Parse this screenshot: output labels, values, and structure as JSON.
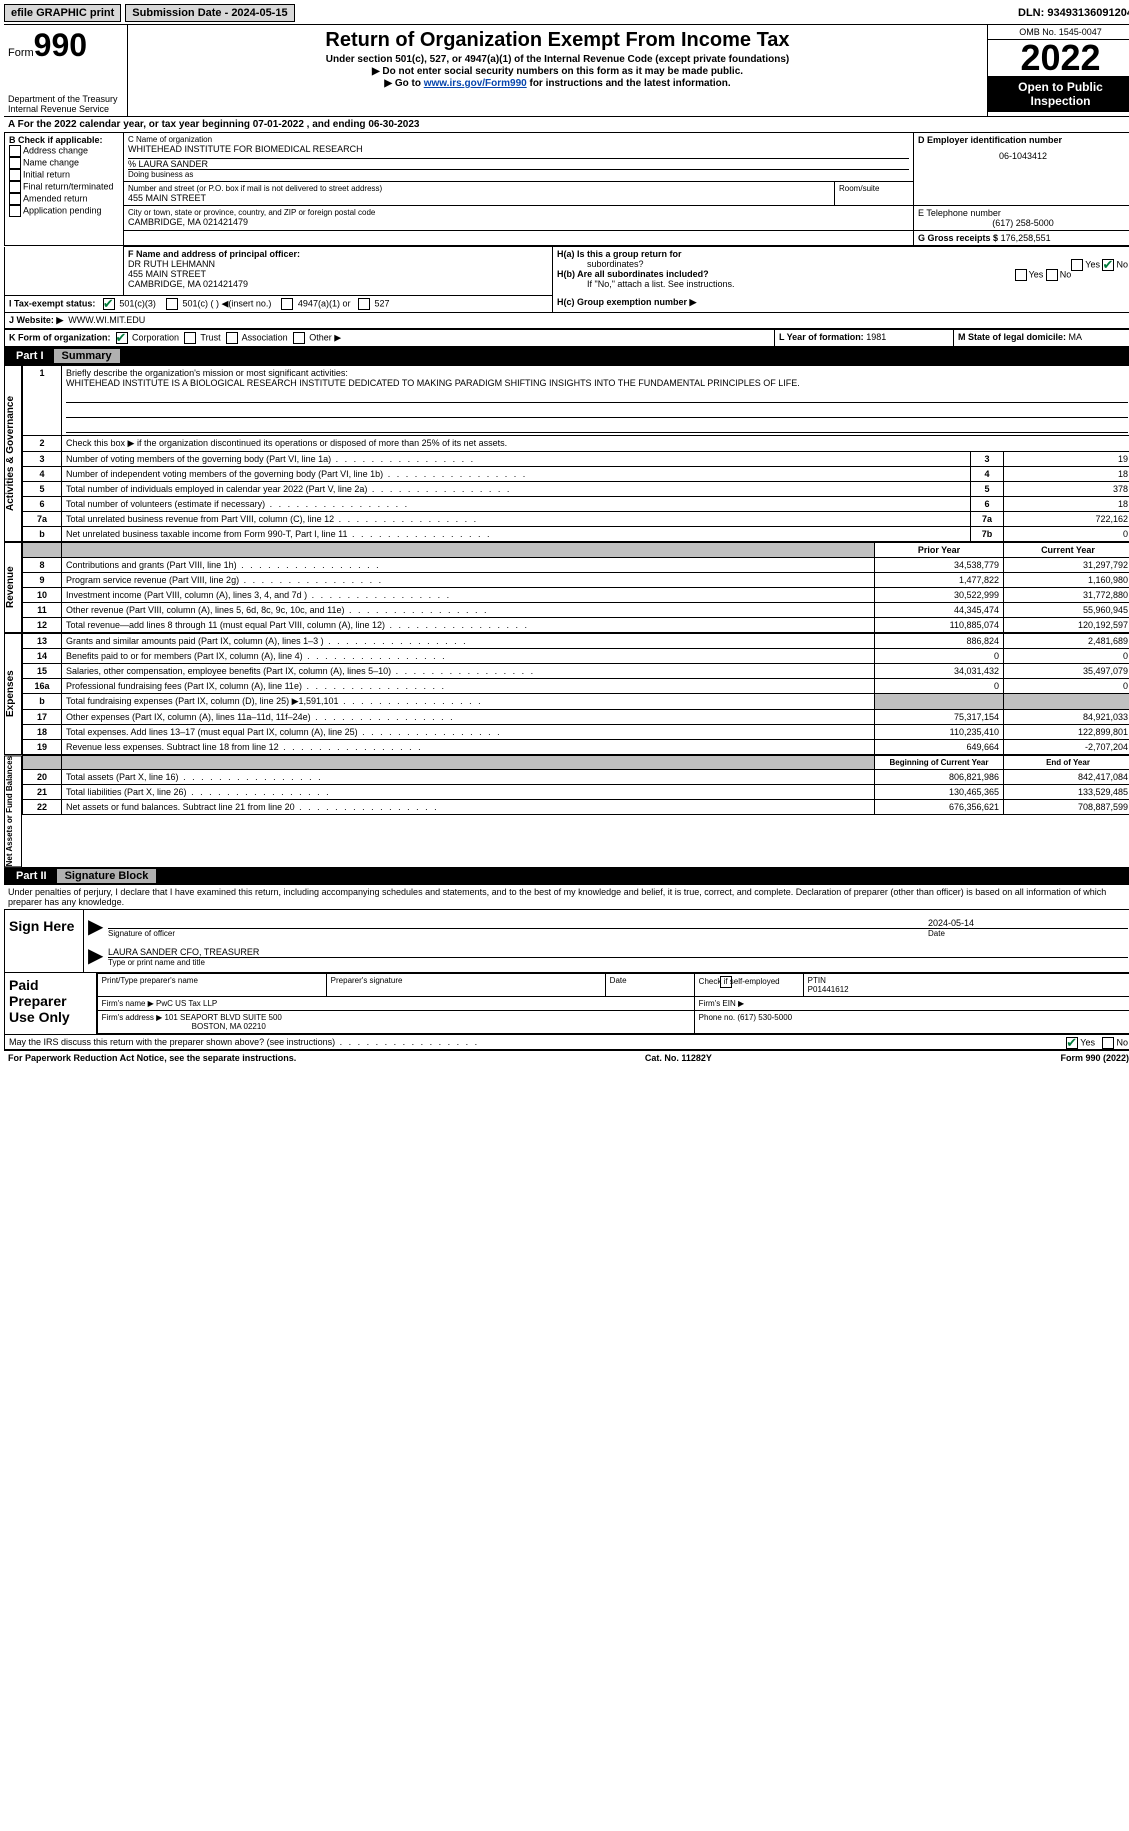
{
  "topbar": {
    "efile": "efile GRAPHIC print",
    "submission_label": "Submission Date - 2024-05-15",
    "dln_label": "DLN: 93493136091204"
  },
  "header": {
    "form_label": "Form",
    "form_num": "990",
    "dept1": "Department of the Treasury",
    "dept2": "Internal Revenue Service",
    "title": "Return of Organization Exempt From Income Tax",
    "sub1": "Under section 501(c), 527, or 4947(a)(1) of the Internal Revenue Code (except private foundations)",
    "sub2": "▶ Do not enter social security numbers on this form as it may be made public.",
    "sub3_pre": "▶ Go to ",
    "sub3_link": "www.irs.gov/Form990",
    "sub3_post": " for instructions and the latest information.",
    "omb": "OMB No. 1545-0047",
    "year": "2022",
    "open1": "Open to Public",
    "open2": "Inspection"
  },
  "row_a": "A For the 2022 calendar year, or tax year beginning 07-01-2022    , and ending 06-30-2023",
  "section_b": {
    "label": "B Check if applicable:",
    "opt1": "Address change",
    "opt2": "Name change",
    "opt3": "Initial return",
    "opt4": "Final return/terminated",
    "opt5": "Amended return",
    "opt6": "Application pending"
  },
  "section_c": {
    "name_label": "C Name of organization",
    "name": "WHITEHEAD INSTITUTE FOR BIOMEDICAL RESEARCH",
    "care_of": "% LAURA SANDER",
    "dba_label": "Doing business as",
    "addr_label": "Number and street (or P.O. box if mail is not delivered to street address)",
    "room_label": "Room/suite",
    "addr": "455 MAIN STREET",
    "city_label": "City or town, state or province, country, and ZIP or foreign postal code",
    "city": "CAMBRIDGE, MA  021421479"
  },
  "section_d": {
    "label": "D Employer identification number",
    "value": "06-1043412"
  },
  "section_e": {
    "label": "E Telephone number",
    "value": "(617) 258-5000"
  },
  "section_g": {
    "label": "G Gross receipts $",
    "value": "176,258,551"
  },
  "section_f": {
    "label": "F Name and address of principal officer:",
    "name": "DR RUTH LEHMANN",
    "addr1": "455 MAIN STREET",
    "addr2": "CAMBRIDGE, MA  021421479"
  },
  "section_h": {
    "ha": "H(a)  Is this a group return for",
    "ha2": "subordinates?",
    "hb": "H(b)  Are all subordinates included?",
    "hb_note": "If \"No,\" attach a list. See instructions.",
    "hc": "H(c)  Group exemption number ▶",
    "yes": "Yes",
    "no": "No"
  },
  "section_i": {
    "label": "I    Tax-exempt status:",
    "opt1": "501(c)(3)",
    "opt2": "501(c) (   ) ◀(insert no.)",
    "opt3": "4947(a)(1) or",
    "opt4": "527"
  },
  "section_j": {
    "label": "J   Website: ▶",
    "value": "WWW.WI.MIT.EDU"
  },
  "section_k": {
    "label": "K Form of organization:",
    "opt1": "Corporation",
    "opt2": "Trust",
    "opt3": "Association",
    "opt4": "Other ▶"
  },
  "section_l": {
    "label": "L Year of formation:",
    "value": "1981"
  },
  "section_m": {
    "label": "M State of legal domicile:",
    "value": "MA"
  },
  "part1": {
    "num": "Part I",
    "title": "Summary",
    "line1_label": "Briefly describe the organization's mission or most significant activities:",
    "mission": "WHITEHEAD INSTITUTE IS A BIOLOGICAL RESEARCH INSTITUTE DEDICATED TO MAKING PARADIGM SHIFTING INSIGHTS INTO THE FUNDAMENTAL PRINCIPLES OF LIFE.",
    "line2": "Check this box ▶        if the organization discontinued its operations or disposed of more than 25% of its net assets.",
    "vert_act": "Activities & Governance",
    "vert_rev": "Revenue",
    "vert_exp": "Expenses",
    "vert_net": "Net Assets or Fund Balances",
    "prior_year": "Prior Year",
    "current_year": "Current Year",
    "beg_year": "Beginning of Current Year",
    "end_year": "End of Year",
    "lines_gov": [
      {
        "n": "3",
        "label": "Number of voting members of the governing body (Part VI, line 1a)",
        "box": "3",
        "val": "19"
      },
      {
        "n": "4",
        "label": "Number of independent voting members of the governing body (Part VI, line 1b)",
        "box": "4",
        "val": "18"
      },
      {
        "n": "5",
        "label": "Total number of individuals employed in calendar year 2022 (Part V, line 2a)",
        "box": "5",
        "val": "378"
      },
      {
        "n": "6",
        "label": "Total number of volunteers (estimate if necessary)",
        "box": "6",
        "val": "18"
      },
      {
        "n": "7a",
        "label": "Total unrelated business revenue from Part VIII, column (C), line 12",
        "box": "7a",
        "val": "722,162"
      },
      {
        "n": "b",
        "label": "Net unrelated business taxable income from Form 990-T, Part I, line 11",
        "box": "7b",
        "val": "0"
      }
    ],
    "lines_rev": [
      {
        "n": "8",
        "label": "Contributions and grants (Part VIII, line 1h)",
        "prior": "34,538,779",
        "curr": "31,297,792"
      },
      {
        "n": "9",
        "label": "Program service revenue (Part VIII, line 2g)",
        "prior": "1,477,822",
        "curr": "1,160,980"
      },
      {
        "n": "10",
        "label": "Investment income (Part VIII, column (A), lines 3, 4, and 7d )",
        "prior": "30,522,999",
        "curr": "31,772,880"
      },
      {
        "n": "11",
        "label": "Other revenue (Part VIII, column (A), lines 5, 6d, 8c, 9c, 10c, and 11e)",
        "prior": "44,345,474",
        "curr": "55,960,945"
      },
      {
        "n": "12",
        "label": "Total revenue—add lines 8 through 11 (must equal Part VIII, column (A), line 12)",
        "prior": "110,885,074",
        "curr": "120,192,597"
      }
    ],
    "lines_exp": [
      {
        "n": "13",
        "label": "Grants and similar amounts paid (Part IX, column (A), lines 1–3 )",
        "prior": "886,824",
        "curr": "2,481,689"
      },
      {
        "n": "14",
        "label": "Benefits paid to or for members (Part IX, column (A), line 4)",
        "prior": "0",
        "curr": "0"
      },
      {
        "n": "15",
        "label": "Salaries, other compensation, employee benefits (Part IX, column (A), lines 5–10)",
        "prior": "34,031,432",
        "curr": "35,497,079"
      },
      {
        "n": "16a",
        "label": "Professional fundraising fees (Part IX, column (A), line 11e)",
        "prior": "0",
        "curr": "0"
      },
      {
        "n": "b",
        "label": "Total fundraising expenses (Part IX, column (D), line 25) ▶1,591,101",
        "prior": "",
        "curr": "",
        "shade": true
      },
      {
        "n": "17",
        "label": "Other expenses (Part IX, column (A), lines 11a–11d, 11f–24e)",
        "prior": "75,317,154",
        "curr": "84,921,033"
      },
      {
        "n": "18",
        "label": "Total expenses. Add lines 13–17 (must equal Part IX, column (A), line 25)",
        "prior": "110,235,410",
        "curr": "122,899,801"
      },
      {
        "n": "19",
        "label": "Revenue less expenses. Subtract line 18 from line 12",
        "prior": "649,664",
        "curr": "-2,707,204"
      }
    ],
    "lines_net": [
      {
        "n": "20",
        "label": "Total assets (Part X, line 16)",
        "prior": "806,821,986",
        "curr": "842,417,084"
      },
      {
        "n": "21",
        "label": "Total liabilities (Part X, line 26)",
        "prior": "130,465,365",
        "curr": "133,529,485"
      },
      {
        "n": "22",
        "label": "Net assets or fund balances. Subtract line 21 from line 20",
        "prior": "676,356,621",
        "curr": "708,887,599"
      }
    ]
  },
  "part2": {
    "num": "Part II",
    "title": "Signature Block",
    "penalty": "Under penalties of perjury, I declare that I have examined this return, including accompanying schedules and statements, and to the best of my knowledge and belief, it is true, correct, and complete. Declaration of preparer (other than officer) is based on all information of which preparer has any knowledge.",
    "sign_here": "Sign Here",
    "sig_off_label": "Signature of officer",
    "sig_date": "2024-05-14",
    "sig_date_label": "Date",
    "print_name": "LAURA SANDER  CFO, TREASURER",
    "print_label": "Type or print name and title",
    "paid": "Paid Preparer Use Only",
    "prep_name_label": "Print/Type preparer's name",
    "prep_sig_label": "Preparer's signature",
    "date_label": "Date",
    "check_label": "Check         if self-employed",
    "ptin_label": "PTIN",
    "ptin": "P01441612",
    "firm_name_label": "Firm's name     ▶",
    "firm_name": "PwC US Tax LLP",
    "firm_ein_label": "Firm's EIN ▶",
    "firm_addr_label": "Firm's address ▶",
    "firm_addr1": "101 SEAPORT BLVD SUITE 500",
    "firm_addr2": "BOSTON, MA  02210",
    "firm_phone_label": "Phone no.",
    "firm_phone": "(617) 530-5000",
    "discuss": "May the IRS discuss this return with the preparer shown above? (see instructions)",
    "yes": "Yes",
    "no": "No"
  },
  "footer": {
    "left": "For Paperwork Reduction Act Notice, see the separate instructions.",
    "mid": "Cat. No. 11282Y",
    "right": "Form 990 (2022)"
  }
}
